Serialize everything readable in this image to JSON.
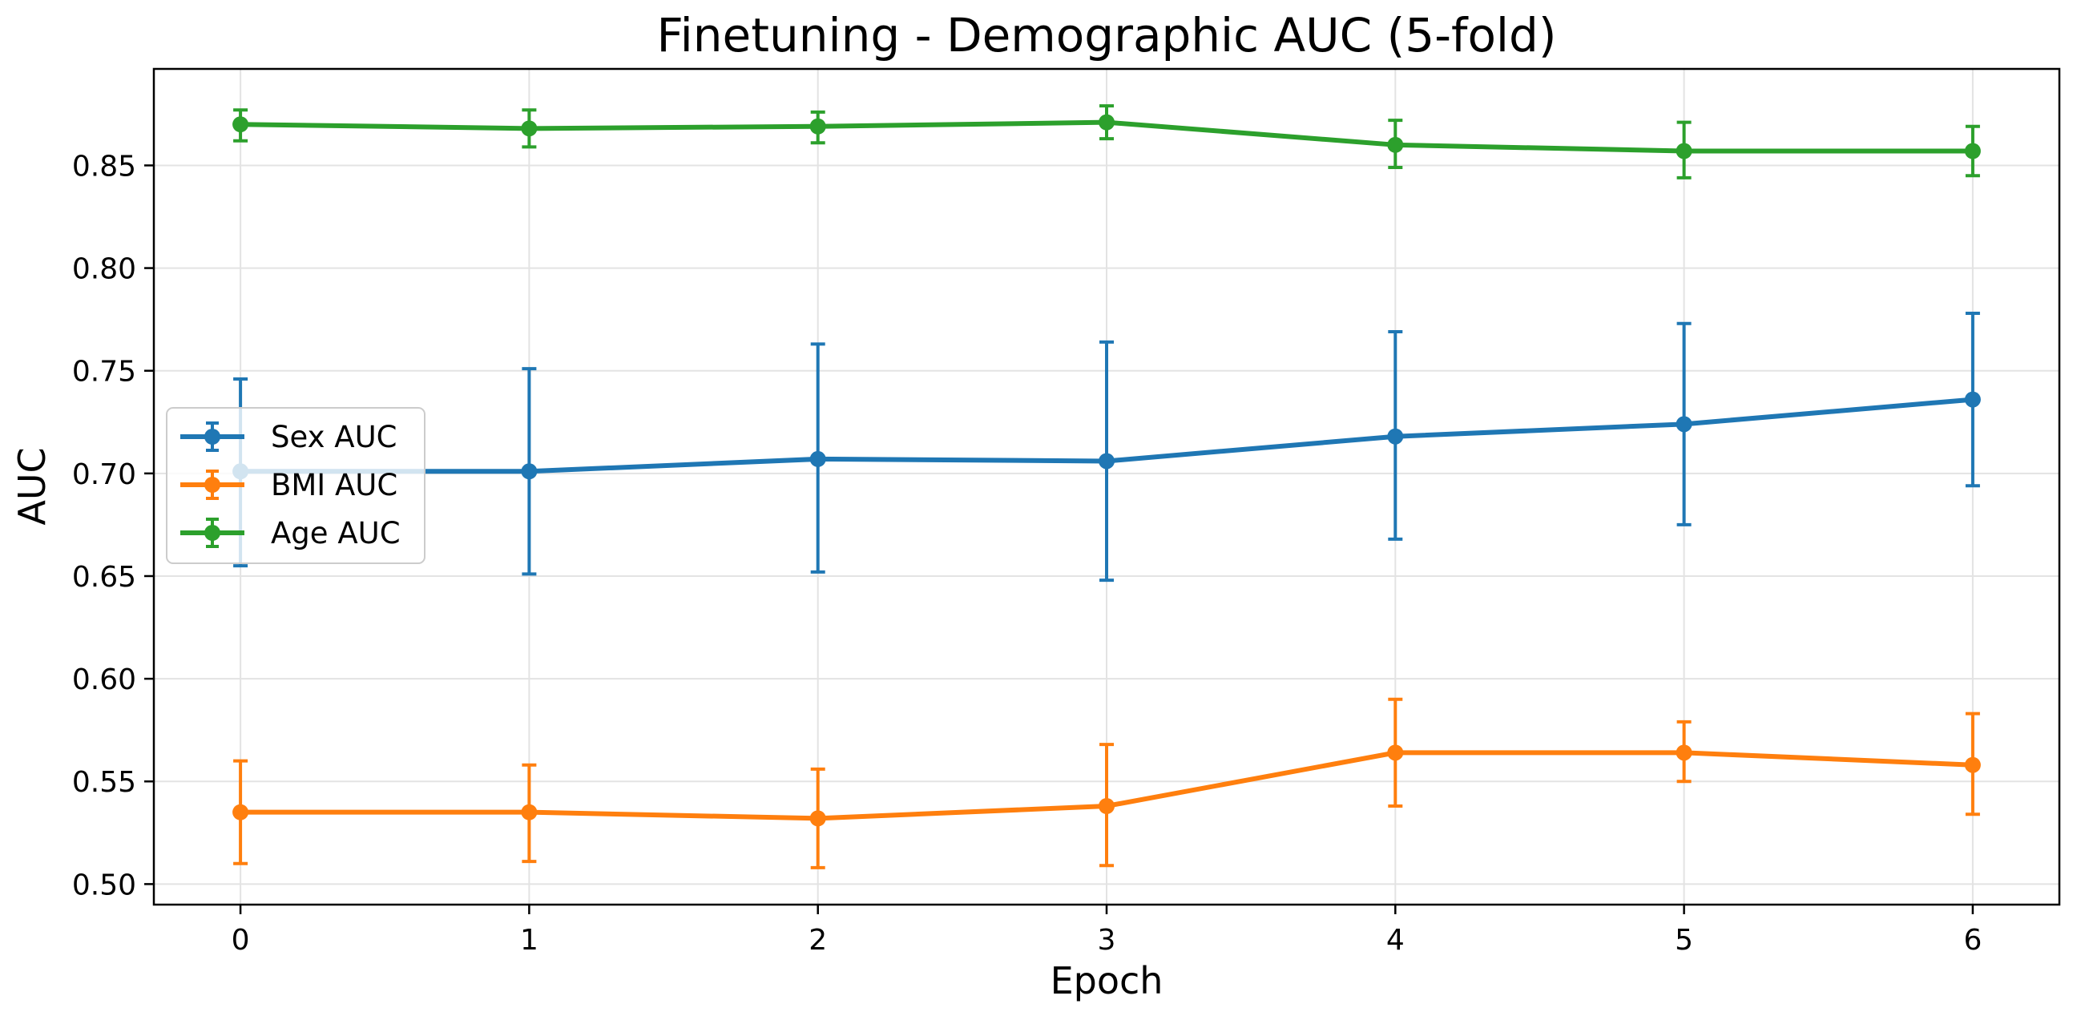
{
  "chart_data": {
    "type": "line",
    "title": "Finetuning - Demographic AUC (5-fold)",
    "xlabel": "Epoch",
    "ylabel": "AUC",
    "x": [
      0,
      1,
      2,
      3,
      4,
      5,
      6
    ],
    "xlim": [
      -0.3,
      6.3
    ],
    "ylim": [
      0.49,
      0.897
    ],
    "xticks": [
      "0",
      "1",
      "2",
      "3",
      "4",
      "5",
      "6"
    ],
    "yticks": [
      "0.50",
      "0.55",
      "0.60",
      "0.65",
      "0.70",
      "0.75",
      "0.80",
      "0.85"
    ],
    "grid": true,
    "legend_position": "center-left",
    "error_bars": true,
    "series": [
      {
        "name": "Sex AUC",
        "color": "#1f77b4",
        "values": [
          0.701,
          0.701,
          0.707,
          0.706,
          0.718,
          0.724,
          0.736
        ],
        "err_low": [
          0.655,
          0.651,
          0.652,
          0.648,
          0.668,
          0.675,
          0.694
        ],
        "err_high": [
          0.746,
          0.751,
          0.763,
          0.764,
          0.769,
          0.773,
          0.778
        ]
      },
      {
        "name": "BMI AUC",
        "color": "#ff7f0e",
        "values": [
          0.535,
          0.535,
          0.532,
          0.538,
          0.564,
          0.564,
          0.558
        ],
        "err_low": [
          0.51,
          0.511,
          0.508,
          0.509,
          0.538,
          0.55,
          0.534
        ],
        "err_high": [
          0.56,
          0.558,
          0.556,
          0.568,
          0.59,
          0.579,
          0.583
        ]
      },
      {
        "name": "Age AUC",
        "color": "#2ca02c",
        "values": [
          0.87,
          0.868,
          0.869,
          0.871,
          0.86,
          0.857,
          0.857
        ],
        "err_low": [
          0.862,
          0.859,
          0.861,
          0.863,
          0.849,
          0.844,
          0.845
        ],
        "err_high": [
          0.877,
          0.877,
          0.876,
          0.879,
          0.872,
          0.871,
          0.869
        ]
      }
    ]
  }
}
